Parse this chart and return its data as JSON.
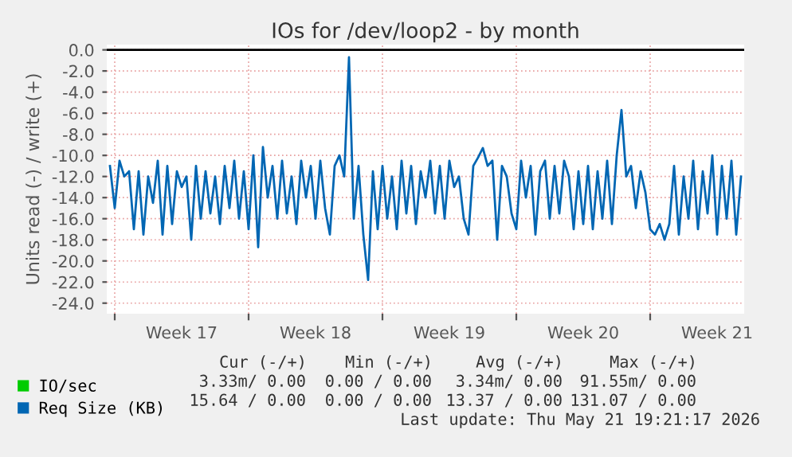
{
  "chart_data": {
    "type": "line",
    "title": "IOs for /dev/loop2 - by month",
    "ylabel": "Units read (-) / write (+)",
    "xlim": [
      "2026-04-19T14:00",
      "2026-05-22T22:00"
    ],
    "xticks": [
      {
        "value": "2026-04-20",
        "label": null
      },
      {
        "value": "2026-04-23T12:00",
        "label": "Week 17"
      },
      {
        "value": "2026-04-27",
        "label": null
      },
      {
        "value": "2026-04-30T12:00",
        "label": "Week 18"
      },
      {
        "value": "2026-05-04",
        "label": null
      },
      {
        "value": "2026-05-07T12:00",
        "label": "Week 19"
      },
      {
        "value": "2026-05-11",
        "label": null
      },
      {
        "value": "2026-05-14T12:00",
        "label": "Week 20"
      },
      {
        "value": "2026-05-18",
        "label": null
      },
      {
        "value": "2026-05-21T12:00",
        "label": "Week 21"
      }
    ],
    "ylim": [
      -25,
      0.5
    ],
    "yticks": [
      {
        "value": -24,
        "label": "-24.0"
      },
      {
        "value": -22,
        "label": "-22.0"
      },
      {
        "value": -20,
        "label": "-20.0"
      },
      {
        "value": -18,
        "label": "-18.0"
      },
      {
        "value": -16,
        "label": "-16.0"
      },
      {
        "value": -14,
        "label": "-14.0"
      },
      {
        "value": -12,
        "label": "-12.0"
      },
      {
        "value": -10,
        "label": "-10.0"
      },
      {
        "value": -8,
        "label": "-8.0"
      },
      {
        "value": -6,
        "label": "-6.0"
      },
      {
        "value": -4,
        "label": "-4.0"
      },
      {
        "value": -2,
        "label": "-2.0"
      },
      {
        "value": 0,
        "label": "0.0"
      }
    ],
    "grid": true,
    "legend": "bottom",
    "line_style": "solid",
    "marker": "none",
    "ref_lines": [
      {
        "axis": "y",
        "value": 0,
        "label": null,
        "color": "#000000"
      }
    ],
    "series": [
      {
        "name": "IO/sec",
        "color": "#00cc00"
      },
      {
        "name": "Req Size (KB)",
        "color": "#0066b3",
        "x": [
          "2026-04-19T18:00",
          "2026-04-20T00:00",
          "2026-04-20T06:00",
          "2026-04-20T12:00",
          "2026-04-20T18:00",
          "2026-04-21T00:00",
          "2026-04-21T06:00",
          "2026-04-21T12:00",
          "2026-04-21T18:00",
          "2026-04-22T00:00",
          "2026-04-22T06:00",
          "2026-04-22T12:00",
          "2026-04-22T18:00",
          "2026-04-23T00:00",
          "2026-04-23T06:00",
          "2026-04-23T12:00",
          "2026-04-23T18:00",
          "2026-04-24T00:00",
          "2026-04-24T06:00",
          "2026-04-24T12:00",
          "2026-04-24T18:00",
          "2026-04-25T00:00",
          "2026-04-25T06:00",
          "2026-04-25T12:00",
          "2026-04-25T18:00",
          "2026-04-26T00:00",
          "2026-04-26T06:00",
          "2026-04-26T12:00",
          "2026-04-26T18:00",
          "2026-04-27T00:00",
          "2026-04-27T06:00",
          "2026-04-27T12:00",
          "2026-04-27T18:00",
          "2026-04-28T00:00",
          "2026-04-28T06:00",
          "2026-04-28T12:00",
          "2026-04-28T18:00",
          "2026-04-29T00:00",
          "2026-04-29T06:00",
          "2026-04-29T12:00",
          "2026-04-29T18:00",
          "2026-04-30T00:00",
          "2026-04-30T06:00",
          "2026-04-30T12:00",
          "2026-04-30T18:00",
          "2026-05-01T00:00",
          "2026-05-01T06:00",
          "2026-05-01T12:00",
          "2026-05-01T18:00",
          "2026-05-02T00:00",
          "2026-05-02T06:00",
          "2026-05-02T12:00",
          "2026-05-02T18:00",
          "2026-05-03T00:00",
          "2026-05-03T06:00",
          "2026-05-03T12:00",
          "2026-05-03T18:00",
          "2026-05-04T00:00",
          "2026-05-04T06:00",
          "2026-05-04T12:00",
          "2026-05-04T18:00",
          "2026-05-05T00:00",
          "2026-05-05T06:00",
          "2026-05-05T12:00",
          "2026-05-05T18:00",
          "2026-05-06T00:00",
          "2026-05-06T06:00",
          "2026-05-06T12:00",
          "2026-05-06T18:00",
          "2026-05-07T00:00",
          "2026-05-07T06:00",
          "2026-05-07T12:00",
          "2026-05-07T18:00",
          "2026-05-08T00:00",
          "2026-05-08T06:00",
          "2026-05-08T12:00",
          "2026-05-08T18:00",
          "2026-05-09T00:00",
          "2026-05-09T06:00",
          "2026-05-09T12:00",
          "2026-05-09T18:00",
          "2026-05-10T00:00",
          "2026-05-10T06:00",
          "2026-05-10T12:00",
          "2026-05-10T18:00",
          "2026-05-11T00:00",
          "2026-05-11T06:00",
          "2026-05-11T12:00",
          "2026-05-11T18:00",
          "2026-05-12T00:00",
          "2026-05-12T06:00",
          "2026-05-12T12:00",
          "2026-05-12T18:00",
          "2026-05-13T00:00",
          "2026-05-13T06:00",
          "2026-05-13T12:00",
          "2026-05-13T18:00",
          "2026-05-14T00:00",
          "2026-05-14T06:00",
          "2026-05-14T12:00",
          "2026-05-14T18:00",
          "2026-05-15T00:00",
          "2026-05-15T06:00",
          "2026-05-15T12:00",
          "2026-05-15T18:00",
          "2026-05-16T00:00",
          "2026-05-16T06:00",
          "2026-05-16T12:00",
          "2026-05-16T18:00",
          "2026-05-17T00:00",
          "2026-05-17T06:00",
          "2026-05-17T12:00",
          "2026-05-17T18:00",
          "2026-05-18T00:00",
          "2026-05-18T06:00",
          "2026-05-18T12:00",
          "2026-05-18T18:00",
          "2026-05-19T00:00",
          "2026-05-19T06:00",
          "2026-05-19T12:00",
          "2026-05-19T18:00",
          "2026-05-20T00:00",
          "2026-05-20T06:00",
          "2026-05-20T12:00",
          "2026-05-20T18:00",
          "2026-05-21T00:00",
          "2026-05-21T06:00",
          "2026-05-21T12:00",
          "2026-05-21T18:00",
          "2026-05-22T00:00",
          "2026-05-22T06:00",
          "2026-05-22T12:00",
          "2026-05-22T18:00"
        ],
        "values": [
          -11,
          -15,
          -10.5,
          -12,
          -11.5,
          -17,
          -11.5,
          -17.5,
          -12,
          -14.5,
          -10.5,
          -17.5,
          -11,
          -16.5,
          -11.5,
          -13,
          -12,
          -18,
          -11,
          -16,
          -11.5,
          -15.5,
          -12,
          -16.5,
          -11,
          -15,
          -10.5,
          -16,
          -11.5,
          -17,
          -10,
          -18.7,
          -9.2,
          -14,
          -11,
          -16,
          -10.5,
          -15.5,
          -12,
          -16.5,
          -10.5,
          -14,
          -11,
          -16,
          -10.5,
          -15,
          -17.5,
          -11,
          -10,
          -12,
          -0.7,
          -16,
          -11,
          -17.5,
          -21.8,
          -11.5,
          -17,
          -11,
          -16,
          -12,
          -17,
          -10.5,
          -15.5,
          -11,
          -16.5,
          -11.5,
          -14,
          -10.5,
          -15.5,
          -11,
          -16,
          -10.5,
          -13,
          -12,
          -16,
          -17.5,
          -11,
          -10.2,
          -9.3,
          -11,
          -10.5,
          -18,
          -11,
          -12,
          -15.5,
          -17,
          -10.5,
          -14,
          -11,
          -17.5,
          -11.5,
          -10.5,
          -16,
          -11,
          -15.5,
          -10.5,
          -12,
          -17,
          -11.5,
          -16.5,
          -11,
          -17,
          -11.5,
          -16,
          -10.5,
          -16.5,
          -10,
          -5.7,
          -12,
          -11,
          -15,
          -11.5,
          -13.5,
          -17,
          -17.5,
          -16.5,
          -18,
          -16.5,
          -11,
          -17.5,
          -12,
          -16,
          -10.5,
          -17,
          -11.5,
          -15.5,
          -10,
          -17.5,
          -11,
          -16,
          -10.5,
          -17.5,
          -12
        ]
      }
    ],
    "annotations": [
      "Cur (-/+)",
      "Min (-/+)",
      "Avg (-/+)",
      "Max (-/+)",
      "3.33m/ 0.00",
      "0.00 / 0.00",
      "3.34m/ 0.00",
      "91.55m/ 0.00",
      "15.64 / 0.00",
      "0.00 / 0.00",
      "13.37 / 0.00",
      "131.07 / 0.00",
      "Last update: Thu May 21 19:21:17 2026"
    ]
  }
}
